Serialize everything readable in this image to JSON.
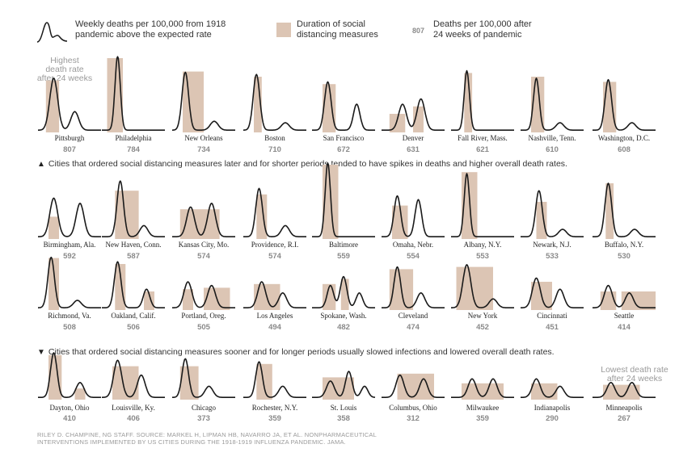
{
  "legend": {
    "line_text": [
      "Weekly deaths per 100,000 from 1918",
      "pandemic above the expected rate"
    ],
    "box_text": [
      "Duration of social",
      "distancing measures"
    ],
    "num_sample": "807",
    "num_text": [
      "Deaths per 100,000 after",
      "24 weeks of pandemic"
    ]
  },
  "notes": {
    "highest": [
      "Highest",
      "death rate",
      "after 24 weeks"
    ],
    "lowest": [
      "Lowest death rate",
      "after 24 weeks"
    ]
  },
  "captions": {
    "later": "Cities that ordered social distancing measures later and for shorter periods tended to have spikes in deaths and higher overall death rates.",
    "sooner": "Cities that ordered social distancing measures sooner and for longer periods usually slowed infections and lowered overall death rates.",
    "up_marker": "▲",
    "down_marker": "▼"
  },
  "footer": [
    "RILEY D. CHAMPINE, NG STAFF. SOURCE: MARKEL H, LIPMAN HB, NAVARRO JA, ET AL. NONPHARMACEUTICAL",
    "INTERVENTIONS IMPLEMENTED BY US CITIES DURING THE 1918-1919 INFLUENZA PANDEMIC. JAMA."
  ],
  "colors": {
    "line": "#1a1a1a",
    "box": "#dcc5b4",
    "value": "#8a8a8a"
  },
  "chart_data": {
    "type": "line",
    "title": "Weekly deaths per 100,000 from 1918 pandemic above the expected rate",
    "x_unit": "weeks",
    "x_range": [
      0,
      24
    ],
    "y_range": [
      0,
      1
    ],
    "y_note": "normalized shape per small multiple",
    "cities": [
      {
        "name": "Pittsburgh",
        "value": "807",
        "peaks": [
          [
            6,
            3,
            0.7
          ],
          [
            14,
            3,
            0.25
          ]
        ],
        "box": [
          [
            3,
            8,
            0.7
          ]
        ]
      },
      {
        "name": "Philadelphia",
        "value": "784",
        "peaks": [
          [
            6,
            2,
            1.0
          ]
        ],
        "box": [
          [
            2,
            8,
            1.0
          ]
        ]
      },
      {
        "name": "New Orleans",
        "value": "734",
        "peaks": [
          [
            5,
            2.5,
            0.78
          ],
          [
            16,
            3,
            0.12
          ]
        ],
        "box": [
          [
            4,
            12,
            0.82
          ]
        ]
      },
      {
        "name": "Boston",
        "value": "710",
        "peaks": [
          [
            5,
            2.5,
            0.75
          ],
          [
            16,
            3,
            0.1
          ]
        ],
        "box": [
          [
            4,
            7,
            0.75
          ]
        ]
      },
      {
        "name": "San Francisco",
        "value": "672",
        "peaks": [
          [
            6,
            2.5,
            0.65
          ],
          [
            17,
            2.5,
            0.35
          ]
        ],
        "box": [
          [
            4,
            9,
            0.65
          ]
        ]
      },
      {
        "name": "Denver",
        "value": "631",
        "peaks": [
          [
            8,
            3,
            0.35
          ],
          [
            15,
            3,
            0.42
          ]
        ],
        "box": [
          [
            3,
            9,
            0.25
          ],
          [
            12,
            16,
            0.35
          ]
        ]
      },
      {
        "name": "Fall River, Mass.",
        "value": "621",
        "peaks": [
          [
            6,
            2,
            0.8
          ]
        ],
        "box": [
          [
            5,
            8,
            0.8
          ]
        ]
      },
      {
        "name": "Nashville, Tenn.",
        "value": "610",
        "peaks": [
          [
            6,
            2.2,
            0.7
          ],
          [
            15,
            3,
            0.1
          ]
        ],
        "box": [
          [
            4,
            9,
            0.75
          ]
        ]
      },
      {
        "name": "Washington, D.C.",
        "value": "608",
        "peaks": [
          [
            6,
            2.5,
            0.68
          ],
          [
            15,
            3,
            0.1
          ]
        ],
        "box": [
          [
            4,
            9,
            0.68
          ]
        ]
      },
      {
        "name": "Birmingham, Ala.",
        "value": "592",
        "peaks": [
          [
            6,
            3,
            0.52
          ],
          [
            16,
            3,
            0.45
          ]
        ],
        "box": [
          [
            4,
            8,
            0.3
          ]
        ]
      },
      {
        "name": "New Haven, Conn.",
        "value": "587",
        "peaks": [
          [
            7,
            2.5,
            0.75
          ],
          [
            16,
            3,
            0.15
          ]
        ],
        "box": [
          [
            5,
            14,
            0.65
          ]
        ]
      },
      {
        "name": "Kansas City, Mo.",
        "value": "574",
        "peaks": [
          [
            7,
            3,
            0.4
          ],
          [
            15,
            3,
            0.45
          ]
        ],
        "box": [
          [
            3,
            18,
            0.4
          ]
        ]
      },
      {
        "name": "Providence, R.I.",
        "value": "574",
        "peaks": [
          [
            6,
            2.5,
            0.65
          ],
          [
            16,
            3,
            0.15
          ]
        ],
        "box": [
          [
            5,
            9,
            0.6
          ]
        ]
      },
      {
        "name": "Baltimore",
        "value": "559",
        "peaks": [
          [
            6,
            2,
            1.0
          ]
        ],
        "box": [
          [
            4,
            10,
            1.0
          ]
        ]
      },
      {
        "name": "Omaha, Nebr.",
        "value": "554",
        "peaks": [
          [
            6,
            2.5,
            0.55
          ],
          [
            14,
            2.5,
            0.5
          ]
        ],
        "box": [
          [
            4,
            10,
            0.45
          ]
        ]
      },
      {
        "name": "Albany, N.Y.",
        "value": "553",
        "peaks": [
          [
            6,
            2,
            0.85
          ]
        ],
        "box": [
          [
            4,
            10,
            0.9
          ]
        ]
      },
      {
        "name": "Newark, N.J.",
        "value": "533",
        "peaks": [
          [
            7,
            2.5,
            0.62
          ],
          [
            16,
            3,
            0.1
          ]
        ],
        "box": [
          [
            6,
            10,
            0.5
          ]
        ]
      },
      {
        "name": "Buffalo, N.Y.",
        "value": "530",
        "peaks": [
          [
            6,
            2.5,
            0.72
          ],
          [
            16,
            3,
            0.1
          ]
        ],
        "box": [
          [
            5,
            8,
            0.75
          ]
        ]
      },
      {
        "name": "Richmond, Va.",
        "value": "508",
        "peaks": [
          [
            5,
            2.5,
            0.68
          ],
          [
            15,
            3,
            0.1
          ]
        ],
        "box": [
          [
            4,
            8,
            0.7
          ]
        ]
      },
      {
        "name": "Oakland, Calif.",
        "value": "506",
        "peaks": [
          [
            6,
            2.5,
            0.62
          ],
          [
            17,
            2.5,
            0.25
          ]
        ],
        "box": [
          [
            5,
            9,
            0.62
          ],
          [
            16,
            20,
            0.25
          ]
        ]
      },
      {
        "name": "Portland, Oreg.",
        "value": "505",
        "peaks": [
          [
            6,
            3,
            0.35
          ],
          [
            15,
            3,
            0.3
          ]
        ],
        "box": [
          [
            4,
            8,
            0.28
          ],
          [
            12,
            22,
            0.3
          ]
        ]
      },
      {
        "name": "Los Angeles",
        "value": "494",
        "peaks": [
          [
            7,
            3,
            0.35
          ],
          [
            15,
            3,
            0.2
          ]
        ],
        "box": [
          [
            4,
            14,
            0.35
          ]
        ]
      },
      {
        "name": "Spokane, Wash.",
        "value": "482",
        "peaks": [
          [
            7,
            2.5,
            0.3
          ],
          [
            12,
            2.5,
            0.42
          ],
          [
            18,
            2.5,
            0.2
          ]
        ],
        "box": [
          [
            4,
            9,
            0.35
          ],
          [
            11,
            14,
            0.42
          ]
        ]
      },
      {
        "name": "Cleveland",
        "value": "474",
        "peaks": [
          [
            6,
            2.5,
            0.55
          ],
          [
            15,
            3,
            0.2
          ]
        ],
        "box": [
          [
            3,
            12,
            0.55
          ]
        ]
      },
      {
        "name": "New York",
        "value": "452",
        "peaks": [
          [
            6,
            3,
            0.58
          ],
          [
            16,
            3,
            0.12
          ]
        ],
        "box": [
          [
            2,
            16,
            0.58
          ]
        ]
      },
      {
        "name": "Cincinnati",
        "value": "451",
        "peaks": [
          [
            6,
            3,
            0.4
          ],
          [
            15,
            3,
            0.25
          ]
        ],
        "box": [
          [
            4,
            12,
            0.38
          ]
        ]
      },
      {
        "name": "Seattle",
        "value": "414",
        "peaks": [
          [
            6,
            3,
            0.3
          ],
          [
            14,
            3,
            0.2
          ]
        ],
        "box": [
          [
            3,
            9,
            0.25
          ],
          [
            11,
            24,
            0.25
          ]
        ]
      },
      {
        "name": "Dayton, Ohio",
        "value": "410",
        "peaks": [
          [
            6,
            2.5,
            0.6
          ],
          [
            16,
            3,
            0.2
          ]
        ],
        "box": [
          [
            4,
            9,
            0.6
          ],
          [
            14,
            18,
            0.15
          ]
        ]
      },
      {
        "name": "Louisville, Ky.",
        "value": "406",
        "peaks": [
          [
            6,
            3,
            0.5
          ],
          [
            15,
            3,
            0.3
          ]
        ],
        "box": [
          [
            4,
            14,
            0.45
          ]
        ]
      },
      {
        "name": "Chicago",
        "value": "373",
        "peaks": [
          [
            5,
            2.5,
            0.52
          ],
          [
            14,
            3,
            0.15
          ]
        ],
        "box": [
          [
            3,
            10,
            0.45
          ]
        ]
      },
      {
        "name": "Rochester, N.Y.",
        "value": "359",
        "peaks": [
          [
            6,
            2.5,
            0.48
          ],
          [
            15,
            3,
            0.15
          ]
        ],
        "box": [
          [
            5,
            11,
            0.48
          ]
        ]
      },
      {
        "name": "St. Louis",
        "value": "358",
        "peaks": [
          [
            7,
            3,
            0.22
          ],
          [
            14,
            2.5,
            0.35
          ],
          [
            20,
            2.5,
            0.15
          ]
        ],
        "box": [
          [
            4,
            16,
            0.3
          ]
        ]
      },
      {
        "name": "Columbus, Ohio",
        "value": "312",
        "peaks": [
          [
            7,
            3,
            0.3
          ],
          [
            16,
            3,
            0.25
          ]
        ],
        "box": [
          [
            6,
            20,
            0.35
          ]
        ]
      },
      {
        "name": "Milwaukee",
        "value": "359",
        "peaks": [
          [
            8,
            3,
            0.25
          ],
          [
            16,
            3,
            0.25
          ]
        ],
        "box": [
          [
            4,
            20,
            0.22
          ]
        ]
      },
      {
        "name": "Indianapolis",
        "value": "290",
        "peaks": [
          [
            6,
            3,
            0.25
          ],
          [
            15,
            3,
            0.15
          ]
        ],
        "box": [
          [
            4,
            14,
            0.22
          ]
        ]
      },
      {
        "name": "Minneapolis",
        "value": "267",
        "peaks": [
          [
            7,
            3,
            0.2
          ],
          [
            15,
            3,
            0.2
          ]
        ],
        "box": [
          [
            4,
            18,
            0.2
          ]
        ]
      }
    ]
  }
}
